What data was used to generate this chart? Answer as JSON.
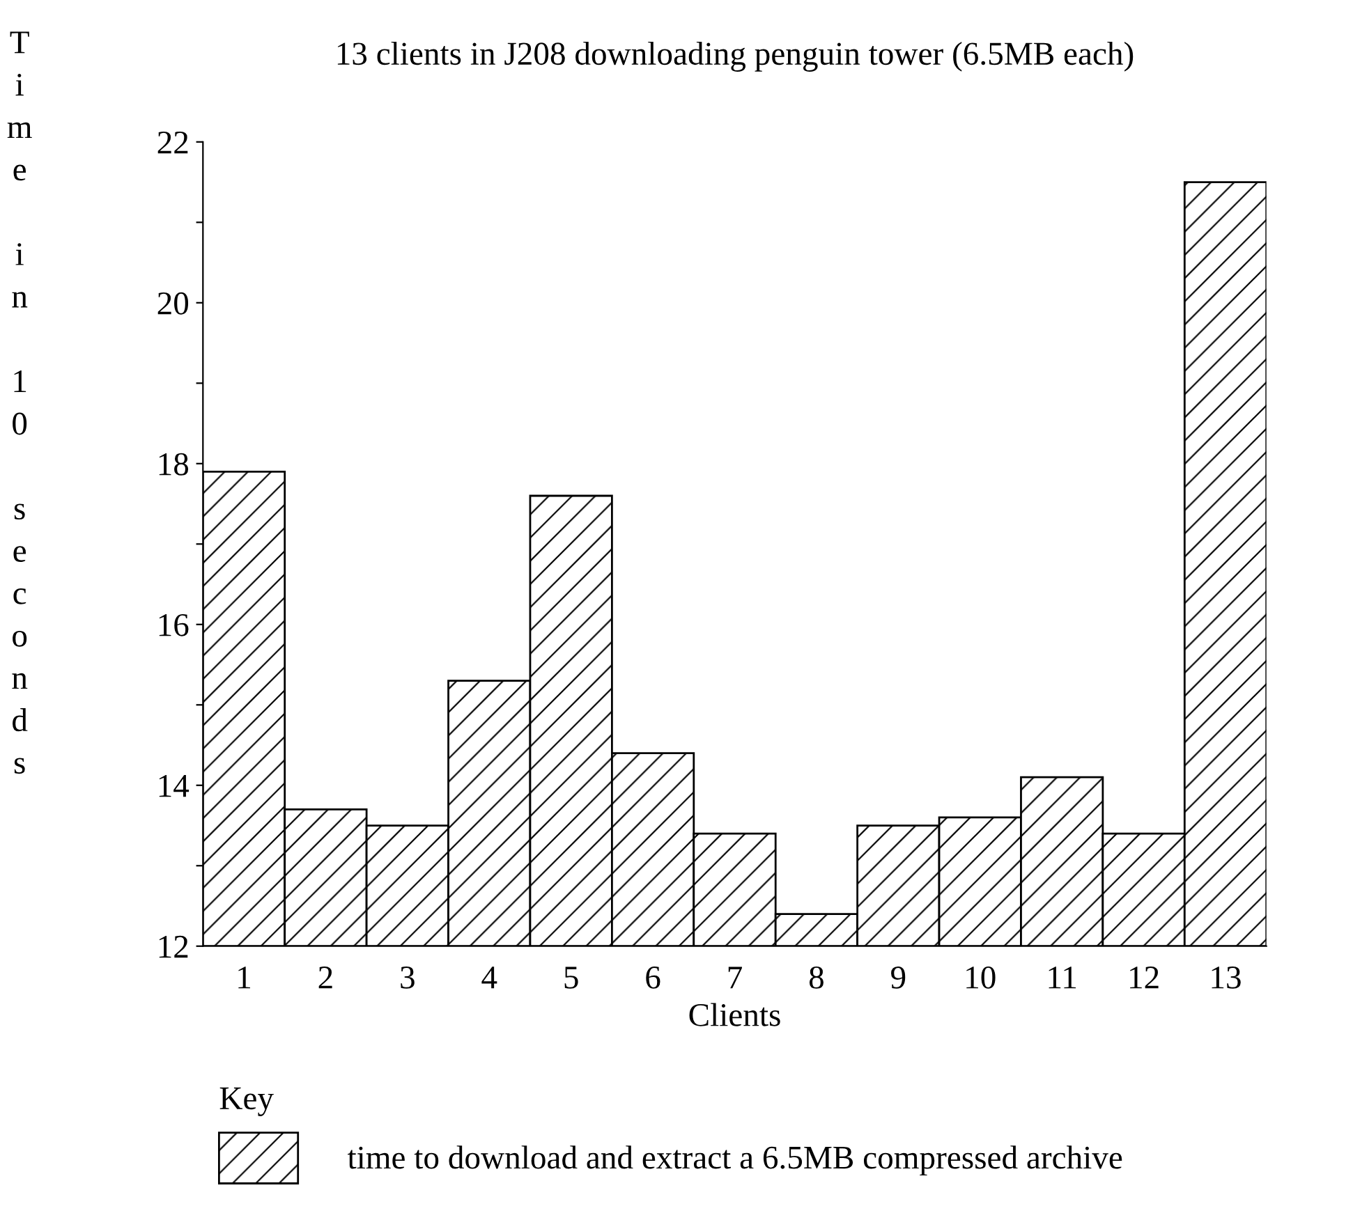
{
  "chart_data": {
    "type": "bar",
    "title": "13 clients in J208 downloading penguin tower (6.5MB each)",
    "xlabel": "Clients",
    "ylabel": "Time in 10 seconds",
    "legend_title": "Key",
    "categories": [
      "1",
      "2",
      "3",
      "4",
      "5",
      "6",
      "7",
      "8",
      "9",
      "10",
      "11",
      "12",
      "13"
    ],
    "series": [
      {
        "name": "time to download and extract a 6.5MB compressed archive",
        "color": "#000000",
        "values": [
          17.9,
          13.7,
          13.5,
          15.3,
          17.6,
          14.4,
          13.4,
          12.4,
          13.5,
          13.6,
          14.1,
          13.4,
          21.5
        ]
      }
    ],
    "ylim": [
      12,
      22
    ],
    "yticks": [
      12,
      {
        "value": 13,
        "label": null
      },
      14,
      {
        "value": 15,
        "label": null
      },
      16,
      {
        "value": 17,
        "label": null
      },
      18,
      {
        "value": 19,
        "label": null
      },
      20,
      {
        "value": 21,
        "label": null
      },
      22
    ],
    "grid": false,
    "legend": "bottom"
  }
}
